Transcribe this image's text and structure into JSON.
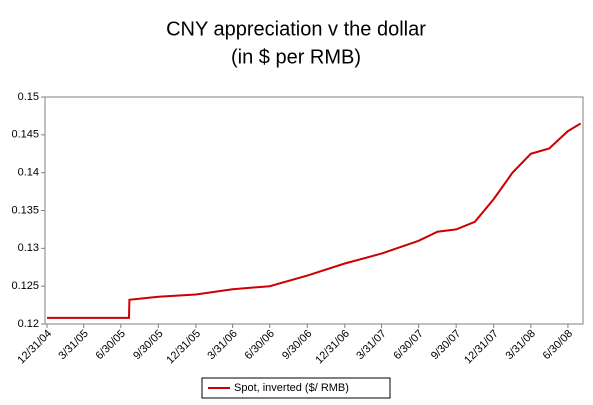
{
  "chart_data": {
    "type": "line",
    "title": "CNY appreciation v the dollar",
    "subtitle": "(in $ per RMB)",
    "x": [
      "12/31/04",
      "3/31/05",
      "6/30/05",
      "7/20/05",
      "7/21/05",
      "9/30/05",
      "12/31/05",
      "3/31/06",
      "6/30/06",
      "9/30/06",
      "12/31/06",
      "3/31/07",
      "6/30/07",
      "8/15/07",
      "9/30/07",
      "11/15/07",
      "12/31/07",
      "2/15/08",
      "3/31/08",
      "5/15/08",
      "6/30/08",
      "7/31/08"
    ],
    "series": [
      {
        "name": "Spot, inverted ($/ RMB)",
        "color": "#cc0000",
        "values": [
          0.1208,
          0.1208,
          0.1208,
          0.1208,
          0.1232,
          0.1236,
          0.1239,
          0.1246,
          0.125,
          0.1264,
          0.128,
          0.1293,
          0.131,
          0.1322,
          0.1325,
          0.1335,
          0.1365,
          0.14,
          0.1425,
          0.1432,
          0.1455,
          0.1465
        ]
      }
    ],
    "xlim": [
      "12/31/04",
      "8/1/08"
    ],
    "xticks": [
      "12/31/04",
      "3/31/05",
      "6/30/05",
      "9/30/05",
      "12/31/05",
      "3/31/06",
      "6/30/06",
      "9/30/06",
      "12/31/06",
      "3/31/07",
      "6/30/07",
      "9/30/07",
      "12/31/07",
      "3/31/08",
      "6/30/08"
    ],
    "ylim": [
      0.12,
      0.15
    ],
    "yticks": [
      0.12,
      0.125,
      0.13,
      0.135,
      0.14,
      0.145,
      0.15
    ],
    "grid": false,
    "legend": "bottom"
  }
}
